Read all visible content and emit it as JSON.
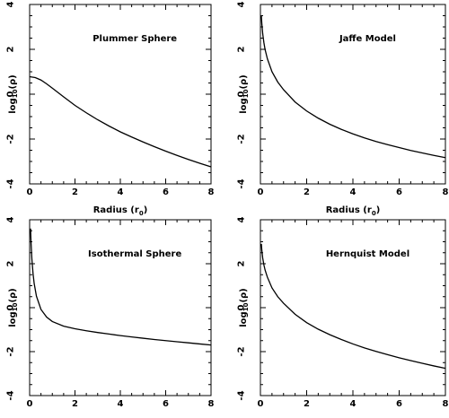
{
  "chart_data": [
    {
      "type": "line",
      "title": "Plummer Sphere",
      "xlabel": "Radius (r",
      "xlabel_sub": "0",
      "xlabel_close": ")",
      "ylabel": "log",
      "ylabel_sub": "10",
      "ylabel_rest": "(ρ)",
      "xlim": [
        0,
        8
      ],
      "ylim": [
        -4,
        4
      ],
      "xticks": [
        0,
        2,
        4,
        6,
        8
      ],
      "yticks": [
        -4,
        -2,
        0,
        2,
        4
      ],
      "grid": false,
      "series": [
        {
          "x": [
            0,
            0.25,
            0.5,
            0.75,
            1,
            1.5,
            2,
            2.5,
            3,
            3.5,
            4,
            4.5,
            5,
            5.5,
            6,
            6.5,
            7,
            7.5,
            8
          ],
          "y": [
            0.78,
            0.74,
            0.63,
            0.46,
            0.27,
            -0.12,
            -0.5,
            -0.83,
            -1.14,
            -1.42,
            -1.68,
            -1.91,
            -2.13,
            -2.34,
            -2.54,
            -2.73,
            -2.91,
            -3.08,
            -3.24
          ]
        }
      ]
    },
    {
      "type": "line",
      "title": "Jaffe Model",
      "xlabel": "Radius (r",
      "xlabel_sub": "0",
      "xlabel_close": ")",
      "ylabel": "log",
      "ylabel_sub": "10",
      "ylabel_rest": "(ρ)",
      "xlim": [
        0,
        8
      ],
      "ylim": [
        -4,
        4
      ],
      "xticks": [
        0,
        2,
        4,
        6,
        8
      ],
      "yticks": [
        -4,
        -2,
        0,
        2,
        4
      ],
      "grid": false,
      "series": [
        {
          "x": [
            0.04,
            0.06,
            0.1,
            0.15,
            0.2,
            0.3,
            0.5,
            0.75,
            1,
            1.5,
            2,
            2.5,
            3,
            3.5,
            4,
            4.5,
            5,
            5.5,
            6,
            6.5,
            7,
            7.5,
            8
          ],
          "y": [
            3.49,
            3.16,
            2.69,
            2.3,
            2.0,
            1.58,
            1.0,
            0.54,
            0.2,
            -0.35,
            -0.75,
            -1.07,
            -1.34,
            -1.57,
            -1.77,
            -1.95,
            -2.11,
            -2.25,
            -2.38,
            -2.51,
            -2.62,
            -2.73,
            -2.83
          ]
        }
      ]
    },
    {
      "type": "line",
      "title": "Isothermal Sphere",
      "xlabel": "",
      "ylabel": "log",
      "ylabel_sub": "10",
      "ylabel_rest": "(ρ)",
      "xlim": [
        0,
        8
      ],
      "ylim": [
        -4,
        4
      ],
      "xticks": [
        0,
        2,
        4,
        6,
        8
      ],
      "yticks": [
        -4,
        -2,
        0,
        2,
        4
      ],
      "grid": false,
      "series": [
        {
          "x": [
            0.04,
            0.06,
            0.1,
            0.15,
            0.2,
            0.3,
            0.5,
            0.75,
            1,
            1.5,
            2,
            2.5,
            3,
            3.5,
            4,
            4.5,
            5,
            5.5,
            6,
            6.5,
            7,
            7.5,
            8
          ],
          "y": [
            3.6,
            3.0,
            2.2,
            1.56,
            1.1,
            0.52,
            -0.08,
            -0.43,
            -0.63,
            -0.84,
            -0.96,
            -1.05,
            -1.13,
            -1.2,
            -1.27,
            -1.33,
            -1.39,
            -1.45,
            -1.5,
            -1.55,
            -1.6,
            -1.65,
            -1.7
          ]
        }
      ]
    },
    {
      "type": "line",
      "title": "Hernquist Model",
      "xlabel": "",
      "ylabel": "log",
      "ylabel_sub": "10",
      "ylabel_rest": "(ρ)",
      "xlim": [
        0,
        8
      ],
      "ylim": [
        -4,
        4
      ],
      "xticks": [
        0,
        2,
        4,
        6,
        8
      ],
      "yticks": [
        -4,
        -2,
        0,
        2,
        4
      ],
      "grid": false,
      "series": [
        {
          "x": [
            0.04,
            0.06,
            0.1,
            0.15,
            0.2,
            0.3,
            0.5,
            0.75,
            1,
            1.5,
            2,
            2.5,
            3,
            3.5,
            4,
            4.5,
            5,
            5.5,
            6,
            6.5,
            7,
            7.5,
            8
          ],
          "y": [
            2.9,
            2.62,
            2.25,
            1.95,
            1.72,
            1.39,
            0.9,
            0.5,
            0.2,
            -0.3,
            -0.68,
            -0.98,
            -1.23,
            -1.45,
            -1.65,
            -1.83,
            -1.99,
            -2.14,
            -2.28,
            -2.41,
            -2.53,
            -2.65,
            -2.76
          ]
        }
      ]
    }
  ]
}
